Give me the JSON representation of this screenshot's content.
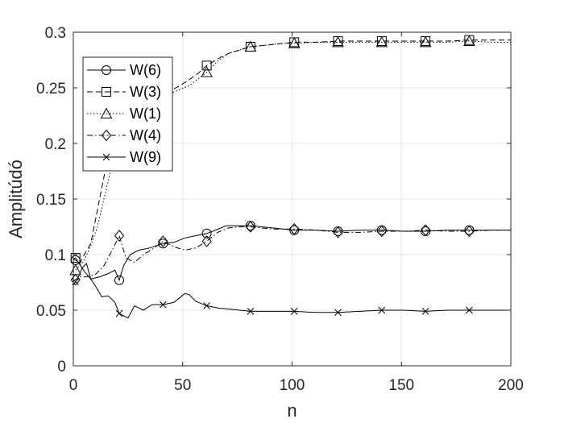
{
  "chart_data": {
    "type": "line",
    "xlabel": "n",
    "ylabel": "Amplitúdó",
    "xlim": [
      0,
      200
    ],
    "ylim": [
      0,
      0.3
    ],
    "x_ticks": [
      "0",
      "50",
      "100",
      "150",
      "200"
    ],
    "y_ticks": [
      "0",
      "0.05",
      "0.1",
      "0.15",
      "0.2",
      "0.25",
      "0.3"
    ],
    "grid": true,
    "legend_position": "top-left",
    "series": [
      {
        "name": "W(6)",
        "marker": "circle",
        "dash": "solid",
        "points": [
          [
            0,
            0.096
          ],
          [
            2,
            0.094
          ],
          [
            5,
            0.085
          ],
          [
            8,
            0.078
          ],
          [
            12,
            0.08
          ],
          [
            16,
            0.083
          ],
          [
            19,
            0.086
          ],
          [
            21,
            0.077
          ],
          [
            23,
            0.09
          ],
          [
            26,
            0.1
          ],
          [
            30,
            0.104
          ],
          [
            35,
            0.106
          ],
          [
            41,
            0.11
          ],
          [
            46,
            0.111
          ],
          [
            51,
            0.115
          ],
          [
            56,
            0.117
          ],
          [
            61,
            0.119
          ],
          [
            65,
            0.122
          ],
          [
            70,
            0.126
          ],
          [
            75,
            0.126
          ],
          [
            81,
            0.126
          ],
          [
            86,
            0.125
          ],
          [
            91,
            0.124
          ],
          [
            96,
            0.123
          ],
          [
            101,
            0.122
          ],
          [
            111,
            0.122
          ],
          [
            121,
            0.121
          ],
          [
            131,
            0.122
          ],
          [
            141,
            0.122
          ],
          [
            151,
            0.121
          ],
          [
            161,
            0.121
          ],
          [
            171,
            0.122
          ],
          [
            181,
            0.122
          ],
          [
            191,
            0.122
          ],
          [
            200,
            0.122
          ]
        ],
        "marker_x": [
          1,
          21,
          41,
          61,
          81,
          101,
          121,
          141,
          161,
          181
        ]
      },
      {
        "name": "W(3)",
        "marker": "square",
        "dash": "dashed",
        "points": [
          [
            0,
            0.096
          ],
          [
            1,
            0.097
          ],
          [
            3,
            0.092
          ],
          [
            5,
            0.1
          ],
          [
            8,
            0.11
          ],
          [
            11,
            0.14
          ],
          [
            14,
            0.17
          ],
          [
            17,
            0.2
          ],
          [
            20,
            0.212
          ],
          [
            24,
            0.223
          ],
          [
            28,
            0.232
          ],
          [
            33,
            0.239
          ],
          [
            38,
            0.242
          ],
          [
            42,
            0.245
          ],
          [
            47,
            0.25
          ],
          [
            52,
            0.256
          ],
          [
            57,
            0.263
          ],
          [
            61,
            0.27
          ],
          [
            66,
            0.276
          ],
          [
            71,
            0.281
          ],
          [
            76,
            0.284
          ],
          [
            81,
            0.287
          ],
          [
            86,
            0.288
          ],
          [
            91,
            0.289
          ],
          [
            96,
            0.29
          ],
          [
            101,
            0.291
          ],
          [
            111,
            0.291
          ],
          [
            121,
            0.292
          ],
          [
            131,
            0.292
          ],
          [
            141,
            0.292
          ],
          [
            151,
            0.292
          ],
          [
            161,
            0.292
          ],
          [
            171,
            0.292
          ],
          [
            181,
            0.293
          ],
          [
            191,
            0.293
          ],
          [
            200,
            0.293
          ]
        ],
        "marker_x": [
          1,
          61,
          81,
          101,
          121,
          141,
          161,
          181
        ]
      },
      {
        "name": "W(1)",
        "marker": "triangle",
        "dash": "dotted",
        "points": [
          [
            0,
            0.084
          ],
          [
            2,
            0.088
          ],
          [
            5,
            0.095
          ],
          [
            8,
            0.108
          ],
          [
            11,
            0.125
          ],
          [
            14,
            0.15
          ],
          [
            17,
            0.175
          ],
          [
            20,
            0.196
          ],
          [
            24,
            0.213
          ],
          [
            28,
            0.225
          ],
          [
            33,
            0.234
          ],
          [
            38,
            0.24
          ],
          [
            43,
            0.244
          ],
          [
            48,
            0.248
          ],
          [
            53,
            0.252
          ],
          [
            57,
            0.258
          ],
          [
            61,
            0.264
          ],
          [
            66,
            0.274
          ],
          [
            71,
            0.281
          ],
          [
            76,
            0.284
          ],
          [
            81,
            0.287
          ],
          [
            86,
            0.288
          ],
          [
            91,
            0.289
          ],
          [
            96,
            0.29
          ],
          [
            101,
            0.29
          ],
          [
            111,
            0.291
          ],
          [
            121,
            0.291
          ],
          [
            131,
            0.291
          ],
          [
            141,
            0.291
          ],
          [
            151,
            0.291
          ],
          [
            161,
            0.291
          ],
          [
            171,
            0.291
          ],
          [
            181,
            0.292
          ],
          [
            191,
            0.291
          ],
          [
            200,
            0.291
          ]
        ],
        "marker_x": [
          1,
          61,
          81,
          101,
          121,
          141,
          161,
          181
        ]
      },
      {
        "name": "W(4)",
        "marker": "diamond",
        "dash": "dashdot",
        "points": [
          [
            0,
            0.076
          ],
          [
            3,
            0.08
          ],
          [
            6,
            0.08
          ],
          [
            10,
            0.082
          ],
          [
            14,
            0.09
          ],
          [
            18,
            0.105
          ],
          [
            21,
            0.117
          ],
          [
            24,
            0.097
          ],
          [
            28,
            0.093
          ],
          [
            32,
            0.1
          ],
          [
            37,
            0.106
          ],
          [
            41,
            0.112
          ],
          [
            46,
            0.107
          ],
          [
            51,
            0.104
          ],
          [
            56,
            0.106
          ],
          [
            61,
            0.112
          ],
          [
            66,
            0.12
          ],
          [
            71,
            0.124
          ],
          [
            76,
            0.125
          ],
          [
            81,
            0.125
          ],
          [
            86,
            0.124
          ],
          [
            91,
            0.123
          ],
          [
            96,
            0.123
          ],
          [
            101,
            0.123
          ],
          [
            111,
            0.122
          ],
          [
            121,
            0.12
          ],
          [
            131,
            0.12
          ],
          [
            141,
            0.121
          ],
          [
            151,
            0.121
          ],
          [
            161,
            0.122
          ],
          [
            171,
            0.121
          ],
          [
            181,
            0.121
          ],
          [
            191,
            0.122
          ],
          [
            200,
            0.122
          ]
        ],
        "marker_x": [
          1,
          21,
          41,
          61,
          81,
          101,
          121,
          141,
          161,
          181
        ]
      },
      {
        "name": "W(9)",
        "marker": "x",
        "dash": "solid",
        "points": [
          [
            0,
            0.073
          ],
          [
            2,
            0.078
          ],
          [
            4,
            0.088
          ],
          [
            6,
            0.092
          ],
          [
            8,
            0.078
          ],
          [
            10,
            0.072
          ],
          [
            13,
            0.062
          ],
          [
            16,
            0.063
          ],
          [
            19,
            0.057
          ],
          [
            21,
            0.047
          ],
          [
            23,
            0.045
          ],
          [
            25,
            0.043
          ],
          [
            28,
            0.054
          ],
          [
            32,
            0.05
          ],
          [
            36,
            0.055
          ],
          [
            41,
            0.055
          ],
          [
            46,
            0.057
          ],
          [
            51,
            0.065
          ],
          [
            53,
            0.064
          ],
          [
            56,
            0.058
          ],
          [
            61,
            0.054
          ],
          [
            66,
            0.052
          ],
          [
            71,
            0.051
          ],
          [
            76,
            0.05
          ],
          [
            81,
            0.049
          ],
          [
            91,
            0.049
          ],
          [
            101,
            0.049
          ],
          [
            111,
            0.048
          ],
          [
            121,
            0.048
          ],
          [
            131,
            0.049
          ],
          [
            141,
            0.05
          ],
          [
            151,
            0.05
          ],
          [
            161,
            0.049
          ],
          [
            171,
            0.05
          ],
          [
            181,
            0.05
          ],
          [
            191,
            0.05
          ],
          [
            200,
            0.05
          ]
        ],
        "marker_x": [
          1,
          21,
          41,
          61,
          81,
          101,
          121,
          141,
          161,
          181
        ]
      }
    ]
  }
}
